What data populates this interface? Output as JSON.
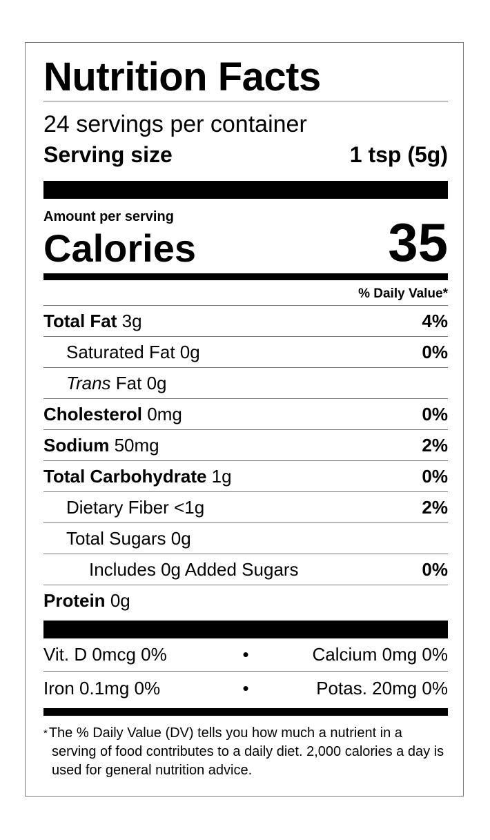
{
  "title": "Nutrition Facts",
  "servings_per_container": "24 servings per container",
  "serving_size": {
    "label": "Serving size",
    "value": "1 tsp (5g)"
  },
  "amount_per_serving": "Amount per serving",
  "calories": {
    "label": "Calories",
    "value": "35"
  },
  "daily_value_header": "% Daily Value*",
  "nutrients": [
    {
      "name": "Total Fat",
      "amount": "3g",
      "dv": "4%",
      "bold": true,
      "indent": 0
    },
    {
      "name": "Saturated Fat",
      "amount": "0g",
      "dv": "0%",
      "bold": false,
      "indent": 1
    },
    {
      "name": "Trans",
      "name_suffix": "Fat",
      "amount": "0g",
      "dv": "",
      "bold": false,
      "indent": 1
    },
    {
      "name": "Cholesterol",
      "amount": "0mg",
      "dv": "0%",
      "bold": true,
      "indent": 0
    },
    {
      "name": "Sodium",
      "amount": "50mg",
      "dv": "2%",
      "bold": true,
      "indent": 0
    },
    {
      "name": "Total Carbohydrate",
      "amount": "1g",
      "dv": "0%",
      "bold": true,
      "indent": 0
    },
    {
      "name": "Dietary Fiber",
      "amount": "<1g",
      "dv": "2%",
      "bold": false,
      "indent": 1
    },
    {
      "name": "Total Sugars",
      "amount": "0g",
      "dv": "",
      "bold": false,
      "indent": 1
    },
    {
      "name": "Includes 0g Added Sugars",
      "amount": "",
      "dv": "0%",
      "bold": false,
      "indent": 2
    },
    {
      "name": "Protein",
      "amount": "0g",
      "dv": "",
      "bold": true,
      "indent": 0
    }
  ],
  "vitamins": [
    {
      "left": "Vit. D 0mcg 0%",
      "sep": "•",
      "right": "Calcium 0mg 0%"
    },
    {
      "left": "Iron 0.1mg 0%",
      "sep": "•",
      "right": "Potas. 20mg 0%"
    }
  ],
  "footnote": {
    "asterisk": "*",
    "text": "The % Daily Value (DV) tells you how much a nutrient in a serving of food contributes to a daily diet. 2,000 calories a day is used for general nutrition advice."
  }
}
